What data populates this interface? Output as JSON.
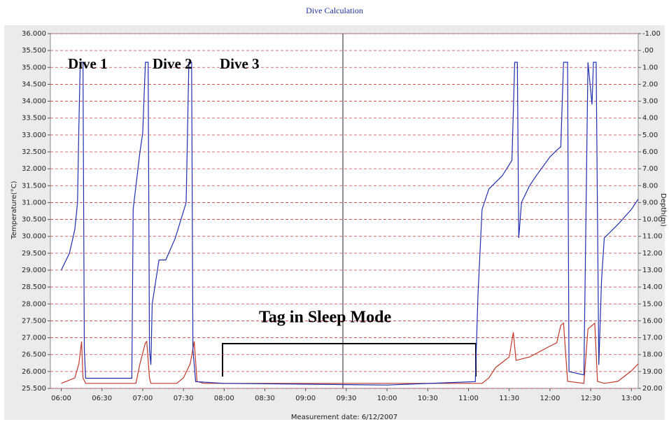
{
  "chart_data": {
    "type": "line",
    "title": "Dive Calculation",
    "xlabel": "Measurement date: 6/12/2007",
    "ylabel": "Temperature(°C)",
    "y2label": "Depth(m)",
    "annotations": [
      "Dive 1",
      "Dive 2",
      "Dive 3",
      "Tag in Sleep Mode"
    ],
    "xlim": [
      352,
      785
    ],
    "xticks": [
      {
        "value": 360,
        "label": "06:00"
      },
      {
        "value": 390,
        "label": "06:30"
      },
      {
        "value": 420,
        "label": "07:00"
      },
      {
        "value": 450,
        "label": "07:30"
      },
      {
        "value": 480,
        "label": "08:00"
      },
      {
        "value": 510,
        "label": "08:30"
      },
      {
        "value": 540,
        "label": "09:00"
      },
      {
        "value": 570,
        "label": "09:30"
      },
      {
        "value": 600,
        "label": "10:00"
      },
      {
        "value": 630,
        "label": "10:30"
      },
      {
        "value": 660,
        "label": "11:00"
      },
      {
        "value": 690,
        "label": "11:30"
      },
      {
        "value": 720,
        "label": "12:00"
      },
      {
        "value": 750,
        "label": "12:30"
      },
      {
        "value": 780,
        "label": "13:00"
      }
    ],
    "ylim": [
      25.5,
      36
    ],
    "yticks": [
      {
        "value": 36,
        "label": "36.000"
      },
      {
        "value": 35.5,
        "label": "35.500"
      },
      {
        "value": 35,
        "label": "35.000"
      },
      {
        "value": 34.5,
        "label": "34.500"
      },
      {
        "value": 34,
        "label": "34.000"
      },
      {
        "value": 33.5,
        "label": "33.500"
      },
      {
        "value": 33,
        "label": "33.000"
      },
      {
        "value": 32.5,
        "label": "32.500"
      },
      {
        "value": 32,
        "label": "32.000"
      },
      {
        "value": 31.5,
        "label": "31.500"
      },
      {
        "value": 31,
        "label": "31.000"
      },
      {
        "value": 30.5,
        "label": "30.500"
      },
      {
        "value": 30,
        "label": "30.000"
      },
      {
        "value": 29.5,
        "label": "29.500"
      },
      {
        "value": 29,
        "label": "29.000"
      },
      {
        "value": 28.5,
        "label": "28.500"
      },
      {
        "value": 28,
        "label": "28.000"
      },
      {
        "value": 27.5,
        "label": "27.500"
      },
      {
        "value": 27,
        "label": "27.000"
      },
      {
        "value": 26.5,
        "label": "26.500"
      },
      {
        "value": 26,
        "label": "26.000"
      },
      {
        "value": 25.5,
        "label": "25.500"
      }
    ],
    "y2lim": [
      20,
      -1
    ],
    "y2ticks": [
      {
        "value": -1,
        "label": "-1.00"
      },
      {
        "value": 0,
        "label": ".00"
      },
      {
        "value": 1,
        "label": "1.00"
      },
      {
        "value": 2,
        "label": "2.00"
      },
      {
        "value": 3,
        "label": "3.00"
      },
      {
        "value": 4,
        "label": "4.00"
      },
      {
        "value": 5,
        "label": "5.00"
      },
      {
        "value": 6,
        "label": "6.00"
      },
      {
        "value": 7,
        "label": "7.00"
      },
      {
        "value": 8,
        "label": "8.00"
      },
      {
        "value": 9,
        "label": "9.00"
      },
      {
        "value": 10,
        "label": "10.00"
      },
      {
        "value": 11,
        "label": "11.00"
      },
      {
        "value": 12,
        "label": "12.00"
      },
      {
        "value": 13,
        "label": "13.00"
      },
      {
        "value": 14,
        "label": "14.00"
      },
      {
        "value": 15,
        "label": "15.00"
      },
      {
        "value": 16,
        "label": "16.00"
      },
      {
        "value": 17,
        "label": "17.00"
      },
      {
        "value": 18,
        "label": "18.00"
      },
      {
        "value": 19,
        "label": "19.00"
      },
      {
        "value": 20,
        "label": "20.00"
      }
    ],
    "grid": true,
    "grid_color": "#d04040",
    "series": [
      {
        "name": "Temperature",
        "color": "#c0392b",
        "axis": "y",
        "x": [
          360,
          370,
          373,
          375,
          376,
          378,
          415,
          418,
          422,
          423,
          425,
          426,
          445,
          450,
          455,
          458,
          460,
          465,
          670,
          675,
          680,
          690,
          693,
          695,
          705,
          720,
          725,
          728,
          730,
          733,
          745,
          748,
          753,
          755,
          760,
          770,
          780,
          785
        ],
        "values": [
          25.65,
          25.81,
          26.23,
          26.89,
          25.81,
          25.65,
          25.65,
          26.23,
          26.85,
          26.89,
          25.81,
          25.65,
          25.65,
          25.81,
          26.23,
          26.89,
          25.71,
          25.65,
          25.65,
          25.81,
          26.12,
          26.43,
          27.16,
          26.33,
          26.43,
          26.75,
          26.85,
          27.37,
          27.43,
          25.71,
          25.65,
          27.26,
          27.43,
          25.71,
          25.65,
          25.71,
          26.02,
          26.23
        ]
      },
      {
        "name": "Depth",
        "color": "#1f2fb0",
        "axis": "y2",
        "x": [
          360,
          366,
          370,
          372,
          373,
          374,
          376,
          377,
          378,
          410,
          412,
          413,
          418,
          420,
          422,
          424,
          425,
          426,
          427,
          432,
          437,
          444,
          452,
          454,
          456,
          457,
          459,
          480,
          600,
          665,
          667,
          670,
          675,
          685,
          692,
          694,
          696,
          697,
          699,
          705,
          710,
          720,
          725,
          728,
          730,
          733,
          734,
          745,
          748,
          751,
          752,
          754,
          756,
          758,
          760,
          770,
          780,
          785
        ],
        "values": [
          13.0,
          12.0,
          10.6,
          9.0,
          4.5,
          0.7,
          0.7,
          17.7,
          19.4,
          19.4,
          19.4,
          9.4,
          6.0,
          4.9,
          0.7,
          0.7,
          17.7,
          18.6,
          15.0,
          12.4,
          12.4,
          11.1,
          9.0,
          0.7,
          0.7,
          17.7,
          19.6,
          19.7,
          19.8,
          19.6,
          14.4,
          9.4,
          8.2,
          7.4,
          6.5,
          0.7,
          0.7,
          11.1,
          9.0,
          8.0,
          7.4,
          6.3,
          5.9,
          5.7,
          0.7,
          0.7,
          19.0,
          19.2,
          0.7,
          3.2,
          0.7,
          0.7,
          18.6,
          13.6,
          11.1,
          10.3,
          9.4,
          8.8
        ]
      }
    ]
  }
}
